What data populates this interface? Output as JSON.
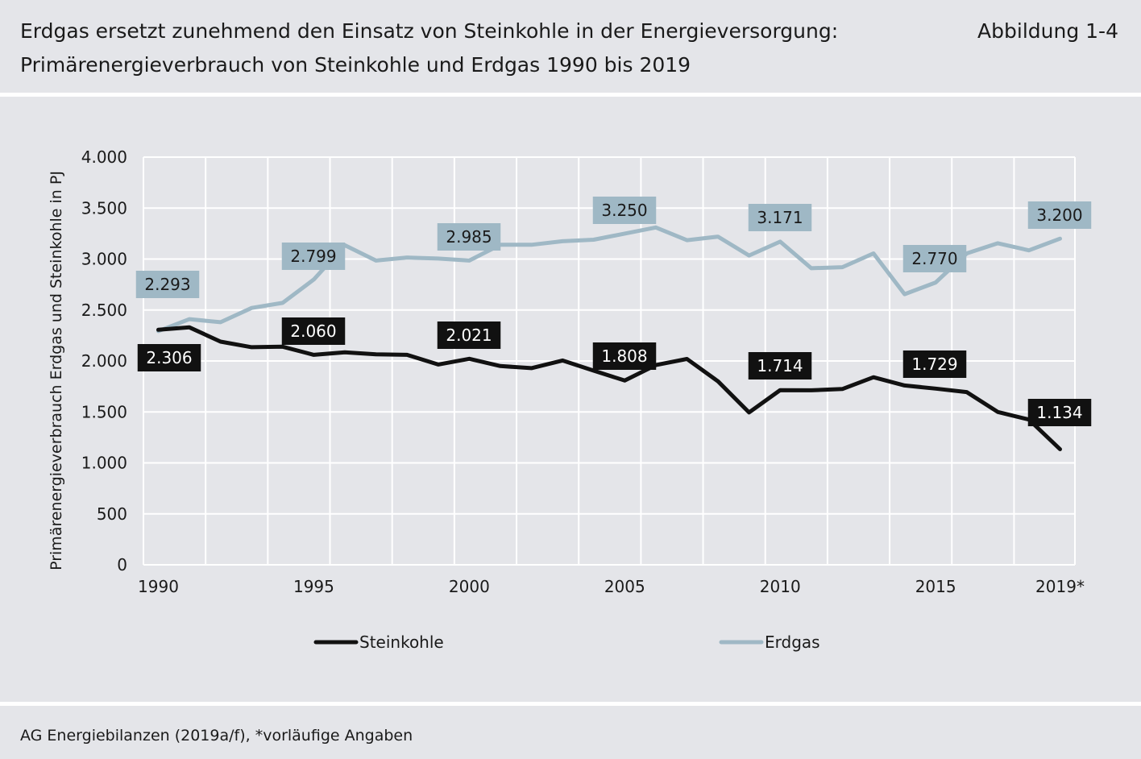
{
  "header": {
    "title_line1": "Erdgas ersetzt zunehmend den Einsatz von Steinkohle in der Energieversorgung:",
    "title_line2": "Primärenergieverbrauch von Steinkohle und Erdgas 1990 bis 2019",
    "figure_label": "Abbildung 1-4"
  },
  "footer": {
    "source": "AG Energiebilanzen (2019a/f), *vorläufige Angaben"
  },
  "colors": {
    "background": "#e4e5e9",
    "steinkohle": "#111111",
    "erdgas": "#9fb8c5",
    "grid": "#ffffff"
  },
  "chart_data": {
    "type": "line",
    "ylabel": "Primärenergieverbrauch Erdgas und Steinkohle in PJ",
    "ylim": [
      0,
      4000
    ],
    "yticks": [
      0,
      500,
      1000,
      1500,
      2000,
      2500,
      3000,
      3500,
      4000
    ],
    "ytick_labels": [
      "0",
      "500",
      "1.000",
      "1.500",
      "2.000",
      "2.500",
      "3.000",
      "3.500",
      "4.000"
    ],
    "x": [
      1990,
      1991,
      1992,
      1993,
      1994,
      1995,
      1996,
      1997,
      1998,
      1999,
      2000,
      2001,
      2002,
      2003,
      2004,
      2005,
      2006,
      2007,
      2008,
      2009,
      2010,
      2011,
      2012,
      2013,
      2014,
      2015,
      2016,
      2017,
      2018,
      2019
    ],
    "xtick_values": [
      1990,
      1995,
      2000,
      2005,
      2010,
      2015,
      2019
    ],
    "xtick_labels": [
      "1990",
      "1995",
      "2000",
      "2005",
      "2010",
      "2015",
      "2019*"
    ],
    "grid": true,
    "legend_position": "bottom",
    "series": [
      {
        "name": "Steinkohle",
        "values": [
          2306,
          2330,
          2190,
          2135,
          2140,
          2060,
          2085,
          2065,
          2060,
          1965,
          2021,
          1950,
          1930,
          2005,
          1905,
          1808,
          1960,
          2020,
          1800,
          1495,
          1714,
          1712,
          1725,
          1840,
          1760,
          1729,
          1695,
          1500,
          1425,
          1134
        ],
        "labels": [
          {
            "year": 1990,
            "text": "2.306"
          },
          {
            "year": 1995,
            "text": "2.060"
          },
          {
            "year": 2000,
            "text": "2.021"
          },
          {
            "year": 2005,
            "text": "1.808"
          },
          {
            "year": 2010,
            "text": "1.714"
          },
          {
            "year": 2015,
            "text": "1.729"
          },
          {
            "year": 2019,
            "text": "1.134"
          }
        ]
      },
      {
        "name": "Erdgas",
        "values": [
          2293,
          2410,
          2380,
          2520,
          2570,
          2799,
          3135,
          2985,
          3015,
          3005,
          2985,
          3140,
          3140,
          3175,
          3190,
          3250,
          3310,
          3185,
          3220,
          3035,
          3171,
          2910,
          2920,
          3055,
          2655,
          2770,
          3055,
          3155,
          3085,
          3200
        ],
        "labels": [
          {
            "year": 1990,
            "text": "2.293"
          },
          {
            "year": 1995,
            "text": "2.799"
          },
          {
            "year": 2000,
            "text": "2.985"
          },
          {
            "year": 2005,
            "text": "3.250"
          },
          {
            "year": 2010,
            "text": "3.171"
          },
          {
            "year": 2015,
            "text": "2.770"
          },
          {
            "year": 2019,
            "text": "3.200"
          }
        ]
      }
    ]
  }
}
